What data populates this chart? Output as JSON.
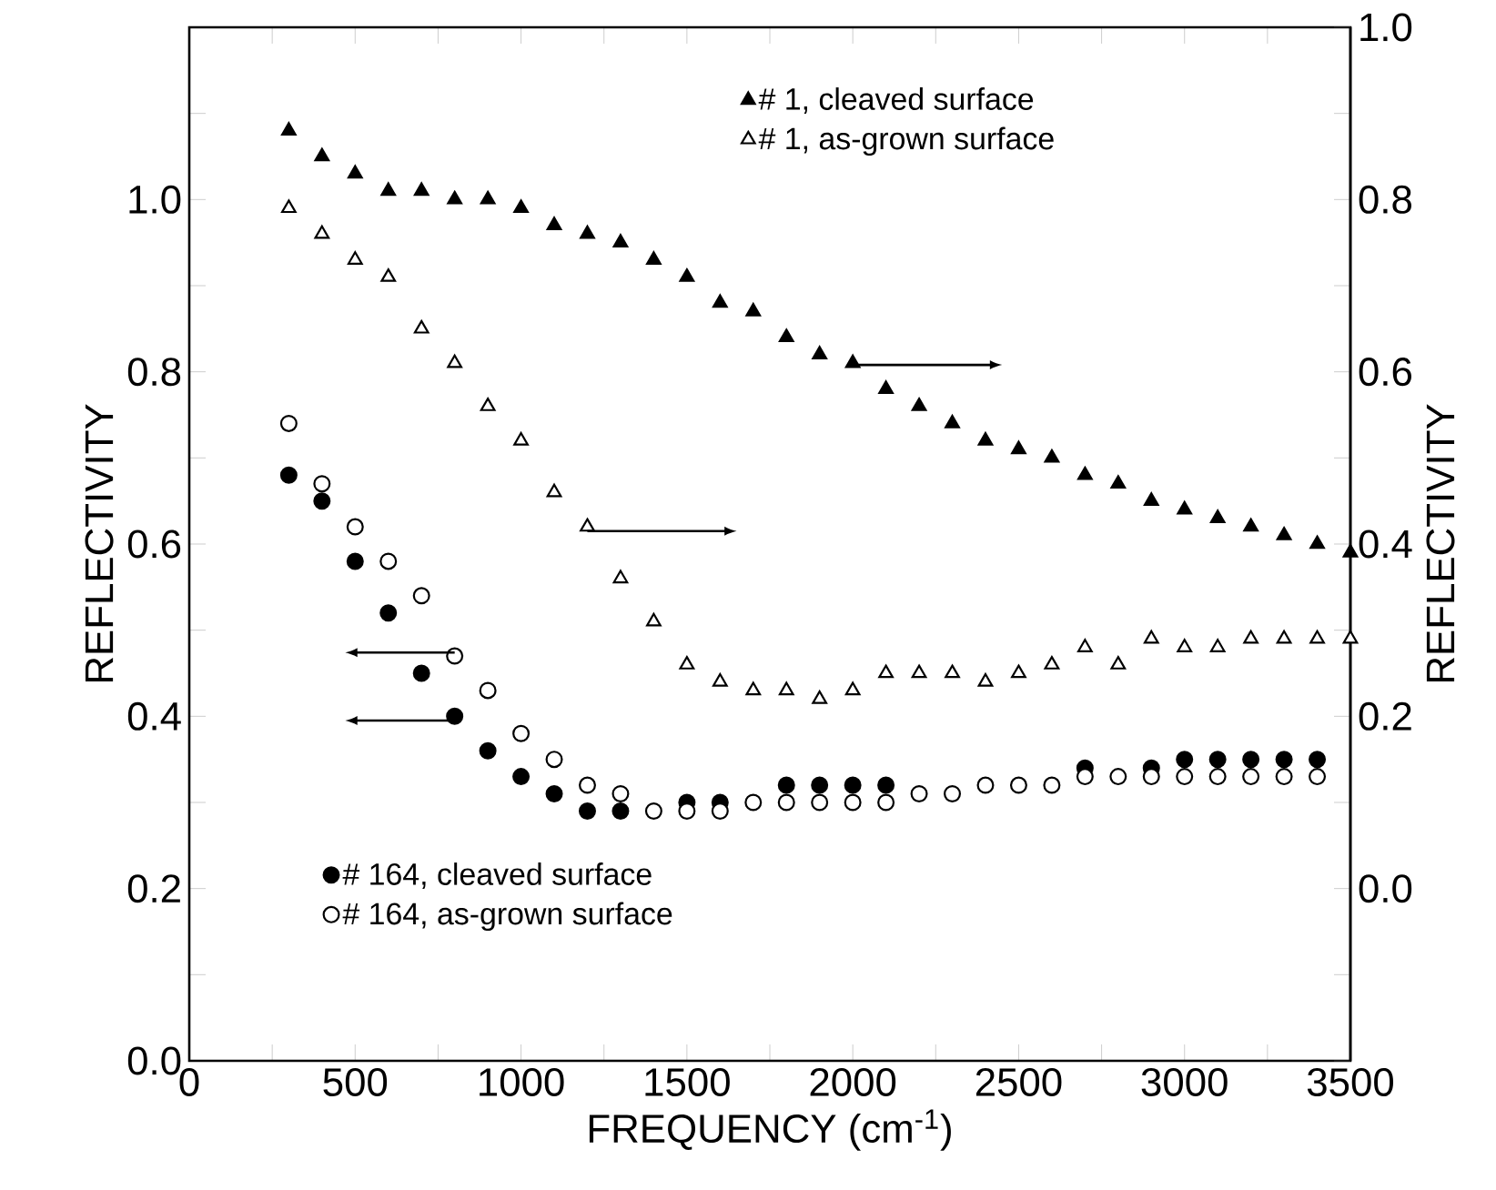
{
  "chart_data": {
    "type": "scatter",
    "xlabel": "FREQUENCY (cm$^{-1}$)",
    "ylabel": "REFLECTIVITY",
    "y2label": "REFLECTIVITY",
    "x": [
      300,
      400,
      500,
      600,
      700,
      800,
      900,
      1000,
      1100,
      1200,
      1300,
      1400,
      1500,
      1600,
      1700,
      1800,
      1900,
      2000,
      2100,
      2200,
      2300,
      2400,
      2500,
      2600,
      2700,
      2800,
      2900,
      3000,
      3100,
      3200,
      3300,
      3400,
      3500
    ],
    "xlim": [
      0,
      3500
    ],
    "xticks": [
      0,
      {
        "value": 250,
        "label": null
      },
      500,
      {
        "value": 750,
        "label": null
      },
      1000,
      {
        "value": 1250,
        "label": null
      },
      1500,
      {
        "value": 1750,
        "label": null
      },
      2000,
      {
        "value": 2250,
        "label": null
      },
      2500,
      {
        "value": 2750,
        "label": null
      },
      3000,
      {
        "value": 3250,
        "label": null
      },
      3500
    ],
    "ylim": [
      0,
      1.2
    ],
    "yticks": [
      {
        "value": 0,
        "label": "0.0"
      },
      {
        "value": 0.1,
        "label": null
      },
      {
        "value": 0.2,
        "label": "0.2"
      },
      {
        "value": 0.3,
        "label": null
      },
      {
        "value": 0.4,
        "label": "0.4"
      },
      {
        "value": 0.5,
        "label": null
      },
      {
        "value": 0.6,
        "label": "0.6"
      },
      {
        "value": 0.7,
        "label": null
      },
      {
        "value": 0.8,
        "label": "0.8"
      },
      {
        "value": 0.9,
        "label": null
      },
      {
        "value": 1.0,
        "label": "1.0"
      },
      {
        "value": 1.1,
        "label": null
      },
      {
        "value": 1.2,
        "label": null
      }
    ],
    "y2lim": [
      -0.2,
      1.0
    ],
    "y2ticks": [
      {
        "value": -0.2,
        "label": null
      },
      {
        "value": -0.1,
        "label": null
      },
      {
        "value": 0,
        "label": "0.0"
      },
      {
        "value": 0.1,
        "label": null
      },
      {
        "value": 0.2,
        "label": "0.2"
      },
      {
        "value": 0.3,
        "label": null
      },
      {
        "value": 0.4,
        "label": "0.4"
      },
      {
        "value": 0.5,
        "label": null
      },
      {
        "value": 0.6,
        "label": "0.6"
      },
      {
        "value": 0.7,
        "label": null
      },
      {
        "value": 0.8,
        "label": "0.8"
      },
      {
        "value": 0.9,
        "label": null
      },
      {
        "value": 1.0,
        "label": "1.0"
      }
    ],
    "legend": "top",
    "series": [
      {
        "name": "# 1, cleaved surface",
        "axis": "y2",
        "marker": "triangle",
        "color": "#000000",
        "values": [
          0.88,
          0.85,
          0.83,
          0.81,
          0.81,
          0.8,
          0.8,
          0.79,
          0.77,
          0.76,
          0.75,
          0.73,
          0.71,
          0.68,
          0.67,
          0.64,
          0.62,
          0.61,
          0.58,
          0.56,
          0.54,
          0.52,
          0.51,
          0.5,
          0.48,
          0.47,
          0.45,
          0.44,
          0.43,
          0.42,
          0.41,
          0.4,
          0.39
        ]
      },
      {
        "name": "# 1, as-grown surface",
        "axis": "y2",
        "marker": "triangle",
        "color": "#ffffff",
        "values": [
          0.79,
          0.76,
          0.73,
          0.71,
          0.65,
          0.61,
          0.56,
          0.52,
          0.46,
          0.42,
          0.36,
          0.31,
          0.26,
          0.24,
          0.23,
          0.23,
          0.22,
          0.23,
          0.25,
          0.25,
          0.25,
          0.24,
          0.25,
          0.26,
          0.28,
          0.26,
          0.29,
          0.28,
          0.28,
          0.29,
          0.29,
          0.29,
          0.29
        ]
      },
      {
        "name": "# 164, cleaved surface",
        "axis": "y",
        "marker": "circle",
        "color": "#000000",
        "x": [
          300,
          400,
          500,
          600,
          700,
          800,
          900,
          1000,
          1100,
          1200,
          1300,
          1400,
          1500,
          1600,
          1700,
          1800,
          1900,
          2000,
          2100,
          2200,
          2300,
          2400,
          2500,
          2600,
          2700,
          2800,
          2900,
          3000,
          3100,
          3200,
          3300,
          3400
        ],
        "values": [
          0.68,
          0.65,
          0.58,
          0.52,
          0.45,
          0.4,
          0.36,
          0.33,
          0.31,
          0.29,
          0.29,
          null,
          0.3,
          0.3,
          null,
          0.32,
          0.32,
          0.32,
          0.32,
          null,
          null,
          null,
          null,
          null,
          0.34,
          null,
          0.34,
          0.35,
          0.35,
          0.35,
          0.35,
          0.35
        ]
      },
      {
        "name": "# 164, as-grown surface",
        "axis": "y",
        "marker": "circle",
        "color": "#ffffff",
        "x": [
          300,
          400,
          500,
          600,
          700,
          800,
          900,
          1000,
          1100,
          1200,
          1300,
          1400,
          1500,
          1600,
          1700,
          1800,
          1900,
          2000,
          2100,
          2200,
          2300,
          2400,
          2500,
          2600,
          2700,
          2800,
          2900,
          3000,
          3100,
          3200,
          3300,
          3400
        ],
        "values": [
          0.74,
          0.67,
          0.62,
          0.58,
          0.54,
          0.47,
          0.43,
          0.38,
          0.35,
          0.32,
          0.31,
          0.29,
          0.29,
          0.29,
          0.3,
          0.3,
          0.3,
          0.3,
          0.3,
          0.31,
          0.31,
          0.32,
          0.32,
          0.32,
          0.33,
          0.33,
          0.33,
          0.33,
          0.33,
          0.33,
          0.33,
          0.33
        ]
      }
    ]
  }
}
